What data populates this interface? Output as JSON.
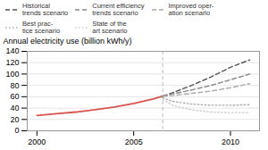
{
  "chart_data": {
    "type": "line",
    "ylabel": "Annual electricity use (billion kWh/y)",
    "xlim": [
      1999.5,
      2011.5
    ],
    "ylim": [
      0,
      140
    ],
    "xticks": [
      2000,
      2005,
      2010
    ],
    "yticks": [
      0,
      20,
      40,
      60,
      80,
      100,
      120,
      140
    ],
    "grid": true,
    "vline": 2006.5,
    "series": [
      {
        "color": "#d9534f",
        "line_style": "solid",
        "x": [
          2000,
          2001,
          2002,
          2003,
          2004,
          2005,
          2006,
          2006.5
        ],
        "values": [
          27,
          30,
          33,
          37,
          42,
          48,
          56,
          61
        ]
      },
      {
        "name": "Historical\ntrends scenario",
        "color": "#555555",
        "line_style": "dashed",
        "x": [
          2006.5,
          2007,
          2008,
          2009,
          2010,
          2011
        ],
        "values": [
          61,
          67,
          80,
          95,
          112,
          125
        ]
      },
      {
        "name": "Current efficiency\ntrends scenario",
        "color": "#888888",
        "line_style": "dashed",
        "x": [
          2006.5,
          2007,
          2008,
          2009,
          2010,
          2011
        ],
        "values": [
          61,
          65,
          72,
          80,
          90,
          100
        ]
      },
      {
        "name": "Improved oper-\nation scenario",
        "color": "#aaaaaa",
        "line_style": "dashed",
        "x": [
          2006.5,
          2007,
          2008,
          2009,
          2010,
          2011
        ],
        "values": [
          61,
          62,
          66,
          70,
          76,
          83
        ]
      },
      {
        "name": "Best prac-\ntice scenario",
        "color": "#aaaaaa",
        "line_style": "dotted",
        "x": [
          2006.5,
          2007,
          2008,
          2009,
          2010,
          2011
        ],
        "values": [
          58,
          52,
          47,
          45,
          45,
          46
        ]
      },
      {
        "name": "State of the\nart scenario",
        "color": "#cccccc",
        "line_style": "dotted",
        "x": [
          2006.5,
          2007,
          2008,
          2009,
          2010,
          2011
        ],
        "values": [
          55,
          45,
          37,
          33,
          32,
          32
        ]
      }
    ]
  }
}
